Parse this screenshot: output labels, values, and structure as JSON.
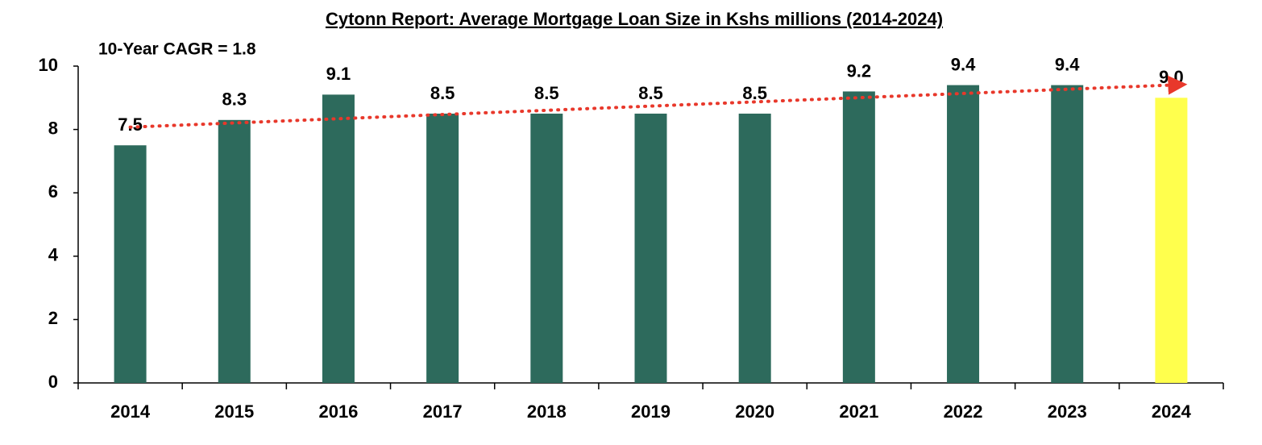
{
  "chart_data": {
    "type": "bar",
    "title": "Cytonn Report: Average Mortgage Loan Size in Kshs millions (2014-2024)",
    "annotation": "10-Year CAGR  = 1.8",
    "categories": [
      "2014",
      "2015",
      "2016",
      "2017",
      "2018",
      "2019",
      "2020",
      "2021",
      "2022",
      "2023",
      "2024"
    ],
    "values": [
      7.5,
      8.3,
      9.1,
      8.5,
      8.5,
      8.5,
      8.5,
      9.2,
      9.4,
      9.4,
      9.0
    ],
    "value_labels": [
      "7.5",
      "8.3",
      "9.1",
      "8.5",
      "8.5",
      "8.5",
      "8.5",
      "9.2",
      "9.4",
      "9.4",
      "9.0"
    ],
    "colors": [
      "#2d6a5c",
      "#2d6a5c",
      "#2d6a5c",
      "#2d6a5c",
      "#2d6a5c",
      "#2d6a5c",
      "#2d6a5c",
      "#2d6a5c",
      "#2d6a5c",
      "#2d6a5c",
      "#ffff4d"
    ],
    "trendline": true,
    "trendline_color": "#e8382b",
    "ylim": [
      0,
      10
    ],
    "yticks": [
      0,
      2,
      4,
      6,
      8,
      10
    ],
    "grid": false
  }
}
